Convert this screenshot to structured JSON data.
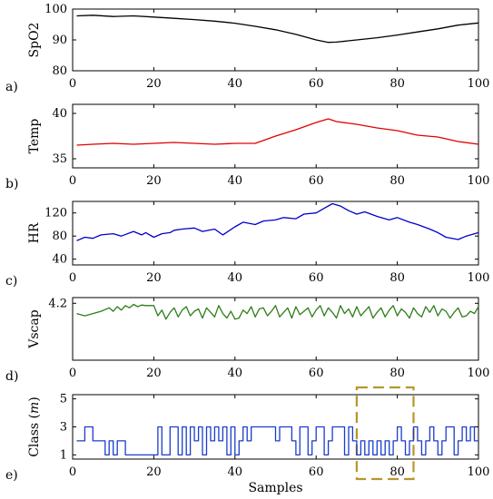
{
  "chart_data": [
    {
      "type": "line",
      "panel": "a)",
      "ylabel": "SpO2",
      "ylim": [
        80,
        100
      ],
      "yticks": [
        80,
        90,
        100
      ],
      "xlim": [
        0,
        100
      ],
      "xticks": [
        0,
        20,
        40,
        60,
        80,
        100
      ],
      "series": [
        {
          "color": "#000000",
          "x": [
            1,
            5,
            10,
            15,
            20,
            25,
            30,
            35,
            40,
            45,
            50,
            55,
            60,
            63,
            65,
            70,
            75,
            80,
            85,
            90,
            95,
            100
          ],
          "y": [
            97.8,
            98,
            97.6,
            97.8,
            97.4,
            97,
            96.6,
            96.1,
            95.4,
            94.4,
            93.3,
            91.8,
            90,
            89.2,
            89.3,
            90,
            90.7,
            91.6,
            92.6,
            93.6,
            94.8,
            95.5
          ]
        }
      ]
    },
    {
      "type": "line",
      "panel": "b)",
      "ylabel": "Temp",
      "ylim": [
        34,
        41
      ],
      "yticks": [
        35,
        40
      ],
      "xlim": [
        0,
        100
      ],
      "xticks": [
        0,
        20,
        40,
        60,
        80,
        100
      ],
      "series": [
        {
          "color": "#e00000",
          "x": [
            1,
            5,
            10,
            15,
            20,
            25,
            30,
            35,
            40,
            45,
            50,
            55,
            60,
            63,
            65,
            70,
            75,
            80,
            85,
            90,
            95,
            100
          ],
          "y": [
            36.5,
            36.6,
            36.7,
            36.6,
            36.7,
            36.8,
            36.7,
            36.6,
            36.7,
            36.7,
            37.5,
            38.2,
            39,
            39.4,
            39.1,
            38.8,
            38.4,
            38.1,
            37.6,
            37.4,
            36.9,
            36.6
          ]
        }
      ]
    },
    {
      "type": "line",
      "panel": "c)",
      "ylabel": "HR",
      "ylim": [
        30,
        140
      ],
      "yticks": [
        40,
        80,
        120
      ],
      "xlim": [
        0,
        100
      ],
      "xticks": [
        0,
        20,
        40,
        60,
        80,
        100
      ],
      "series": [
        {
          "color": "#0000cc",
          "x": [
            1,
            3,
            5,
            7,
            10,
            12,
            15,
            17,
            18,
            20,
            22,
            24,
            25,
            27,
            30,
            32,
            35,
            37,
            40,
            42,
            45,
            47,
            50,
            52,
            55,
            57,
            60,
            62,
            64,
            66,
            68,
            70,
            72,
            75,
            78,
            80,
            83,
            85,
            88,
            90,
            92,
            95,
            97,
            100
          ],
          "y": [
            72,
            78,
            76,
            82,
            84,
            80,
            88,
            82,
            86,
            78,
            84,
            86,
            90,
            92,
            94,
            88,
            92,
            82,
            96,
            104,
            100,
            106,
            108,
            112,
            110,
            118,
            120,
            128,
            136,
            132,
            124,
            118,
            122,
            114,
            108,
            112,
            104,
            100,
            92,
            86,
            78,
            74,
            80,
            86
          ]
        }
      ]
    },
    {
      "type": "line",
      "panel": "d)",
      "ylabel": "Vscap",
      "ylim": [
        3.2,
        4.3
      ],
      "yticks": [
        4.2
      ],
      "xlim": [
        0,
        100
      ],
      "xticks": [
        0,
        20,
        40,
        60,
        80,
        100
      ],
      "series": [
        {
          "color": "#2e7d1a",
          "x": [
            1,
            3,
            5,
            7,
            9,
            10,
            11,
            12,
            13,
            14,
            15,
            16,
            17,
            18,
            19,
            20,
            21,
            22,
            23,
            24,
            25,
            26,
            27,
            28,
            29,
            30,
            31,
            32,
            33,
            34,
            35,
            36,
            37,
            38,
            39,
            40,
            41,
            42,
            43,
            44,
            45,
            46,
            47,
            48,
            49,
            50,
            51,
            52,
            53,
            54,
            55,
            56,
            57,
            58,
            59,
            60,
            61,
            62,
            63,
            64,
            65,
            66,
            67,
            68,
            69,
            70,
            71,
            72,
            73,
            74,
            75,
            76,
            77,
            78,
            79,
            80,
            81,
            82,
            83,
            84,
            85,
            86,
            87,
            88,
            89,
            90,
            91,
            92,
            93,
            94,
            95,
            96,
            97,
            98,
            99,
            100
          ],
          "y": [
            4.02,
            3.98,
            4.02,
            4.06,
            4.12,
            4.06,
            4.14,
            4.08,
            4.16,
            4.12,
            4.18,
            4.14,
            4.17,
            4.16,
            4.16,
            4.16,
            3.98,
            4.08,
            3.92,
            4.04,
            4.12,
            3.96,
            4.08,
            4.14,
            3.98,
            4.06,
            4.1,
            3.94,
            4.12,
            4.04,
            3.96,
            4.16,
            4.02,
            3.94,
            4.06,
            3.92,
            3.94,
            4.08,
            4.02,
            4.14,
            3.96,
            4.1,
            4.12,
            3.98,
            4.06,
            4.16,
            3.96,
            4.04,
            4.12,
            3.94,
            4.14,
            4.0,
            4.06,
            4.12,
            3.96,
            4.08,
            4.16,
            3.98,
            4.12,
            4.04,
            3.94,
            4.16,
            4.02,
            4.1,
            3.96,
            4.14,
            3.98,
            4.06,
            4.14,
            3.94,
            4.04,
            4.12,
            3.96,
            4.08,
            4.16,
            3.98,
            4.1,
            4.04,
            3.94,
            4.12,
            4.02,
            3.96,
            4.14,
            4.04,
            4.16,
            3.98,
            4.1,
            4.06,
            3.94,
            4.04,
            4.12,
            3.96,
            3.98,
            4.06,
            4.02,
            4.14
          ]
        }
      ]
    },
    {
      "type": "line",
      "panel": "e)",
      "ylabel": "Class (m)",
      "ylabel_parts": [
        "Class (",
        "m",
        ")"
      ],
      "xlabel": "Samples",
      "ylim": [
        0.7,
        5.3
      ],
      "yticks": [
        1,
        3,
        5
      ],
      "xlim": [
        0,
        100
      ],
      "xticks": [
        0,
        20,
        40,
        60,
        80,
        100
      ],
      "step": true,
      "highlight": {
        "x0": 70,
        "x1": 84,
        "y0": 0.3,
        "y1": 5.5
      },
      "series": [
        {
          "color": "#1a3ccc",
          "x": [
            1,
            3,
            5,
            7,
            8,
            9,
            10,
            11,
            12,
            13,
            14,
            21,
            22,
            24,
            25,
            26,
            27,
            28,
            29,
            30,
            31,
            32,
            33,
            34,
            35,
            36,
            37,
            38,
            39,
            40,
            41,
            42,
            43,
            44,
            45,
            46,
            47,
            48,
            49,
            50,
            51,
            52,
            53,
            54,
            55,
            56,
            57,
            58,
            59,
            60,
            61,
            62,
            63,
            64,
            65,
            66,
            67,
            68,
            69,
            70,
            71,
            72,
            73,
            74,
            75,
            76,
            77,
            78,
            79,
            80,
            81,
            82,
            83,
            84,
            85,
            86,
            87,
            88,
            89,
            90,
            91,
            92,
            93,
            94,
            95,
            96,
            97,
            98,
            99,
            100
          ],
          "y": [
            2,
            3,
            2,
            2,
            1,
            2,
            1,
            2,
            2,
            1,
            1,
            3,
            1,
            3,
            3,
            1,
            3,
            1,
            3,
            2,
            3,
            1,
            3,
            2,
            3,
            2,
            3,
            1,
            3,
            1,
            2,
            3,
            2,
            3,
            3,
            3,
            3,
            3,
            3,
            2,
            3,
            3,
            3,
            2,
            1,
            3,
            3,
            1,
            2,
            3,
            3,
            1,
            2,
            3,
            3,
            3,
            1,
            3,
            2,
            1,
            2,
            1,
            2,
            1,
            2,
            1,
            2,
            1,
            2,
            3,
            2,
            1,
            2,
            3,
            2,
            1,
            2,
            3,
            2,
            1,
            2,
            3,
            3,
            1,
            2,
            3,
            2,
            3,
            2,
            2
          ]
        }
      ]
    }
  ]
}
